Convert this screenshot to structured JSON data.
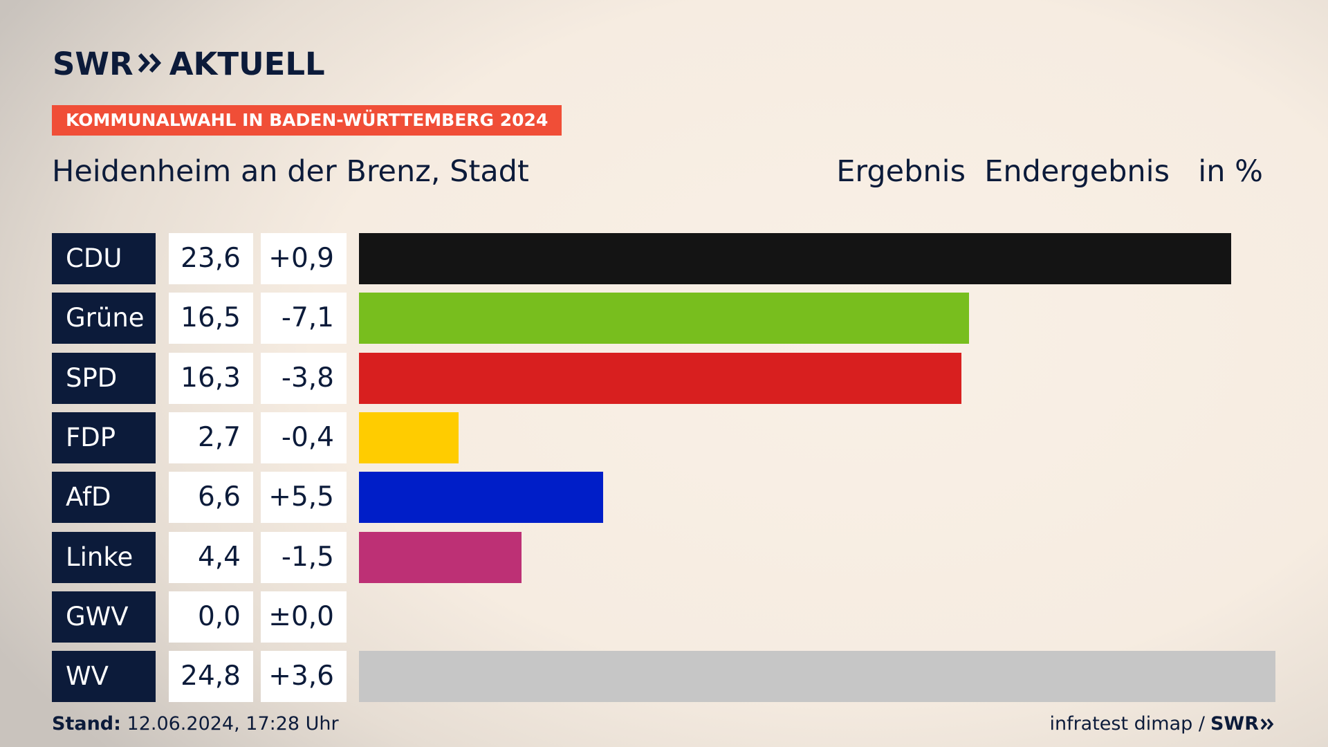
{
  "brand": {
    "logo_left": "SWR",
    "logo_right": "AKTUELL",
    "footer_logo": "SWR"
  },
  "badge": "KOMMUNALWAHL IN BADEN-WÜRTTEMBERG 2024",
  "place": "Heidenheim an der Brenz, Stadt",
  "header": {
    "result": "Ergebnis",
    "final": "Endergebnis",
    "unit": "in %"
  },
  "footer": {
    "stand_label": "Stand:",
    "stand_value": "12.06.2024, 17:28 Uhr",
    "source": "infratest dimap /"
  },
  "colors": {
    "navy": "#0c1b3a",
    "badge": "#f04e37"
  },
  "chart_data": {
    "type": "bar",
    "categories": [
      "CDU",
      "Grüne",
      "SPD",
      "FDP",
      "AfD",
      "Linke",
      "GWV",
      "WV"
    ],
    "values": [
      23.6,
      16.5,
      16.3,
      2.7,
      6.6,
      4.4,
      0.0,
      24.8
    ],
    "value_labels": [
      "23,6",
      "16,5",
      "16,3",
      "2,7",
      "6,6",
      "4,4",
      "0,0",
      "24,8"
    ],
    "diff_labels": [
      "+0,9",
      "-7,1",
      "-3,8",
      "-0,4",
      "+5,5",
      "-1,5",
      "±0,0",
      "+3,6"
    ],
    "colors": [
      "#141414",
      "#78be1e",
      "#d81f1f",
      "#ffcc00",
      "#001ec8",
      "#bd3075",
      "#c6c6c6",
      "#c6c6c6"
    ],
    "xlim": [
      0,
      24.8
    ]
  }
}
